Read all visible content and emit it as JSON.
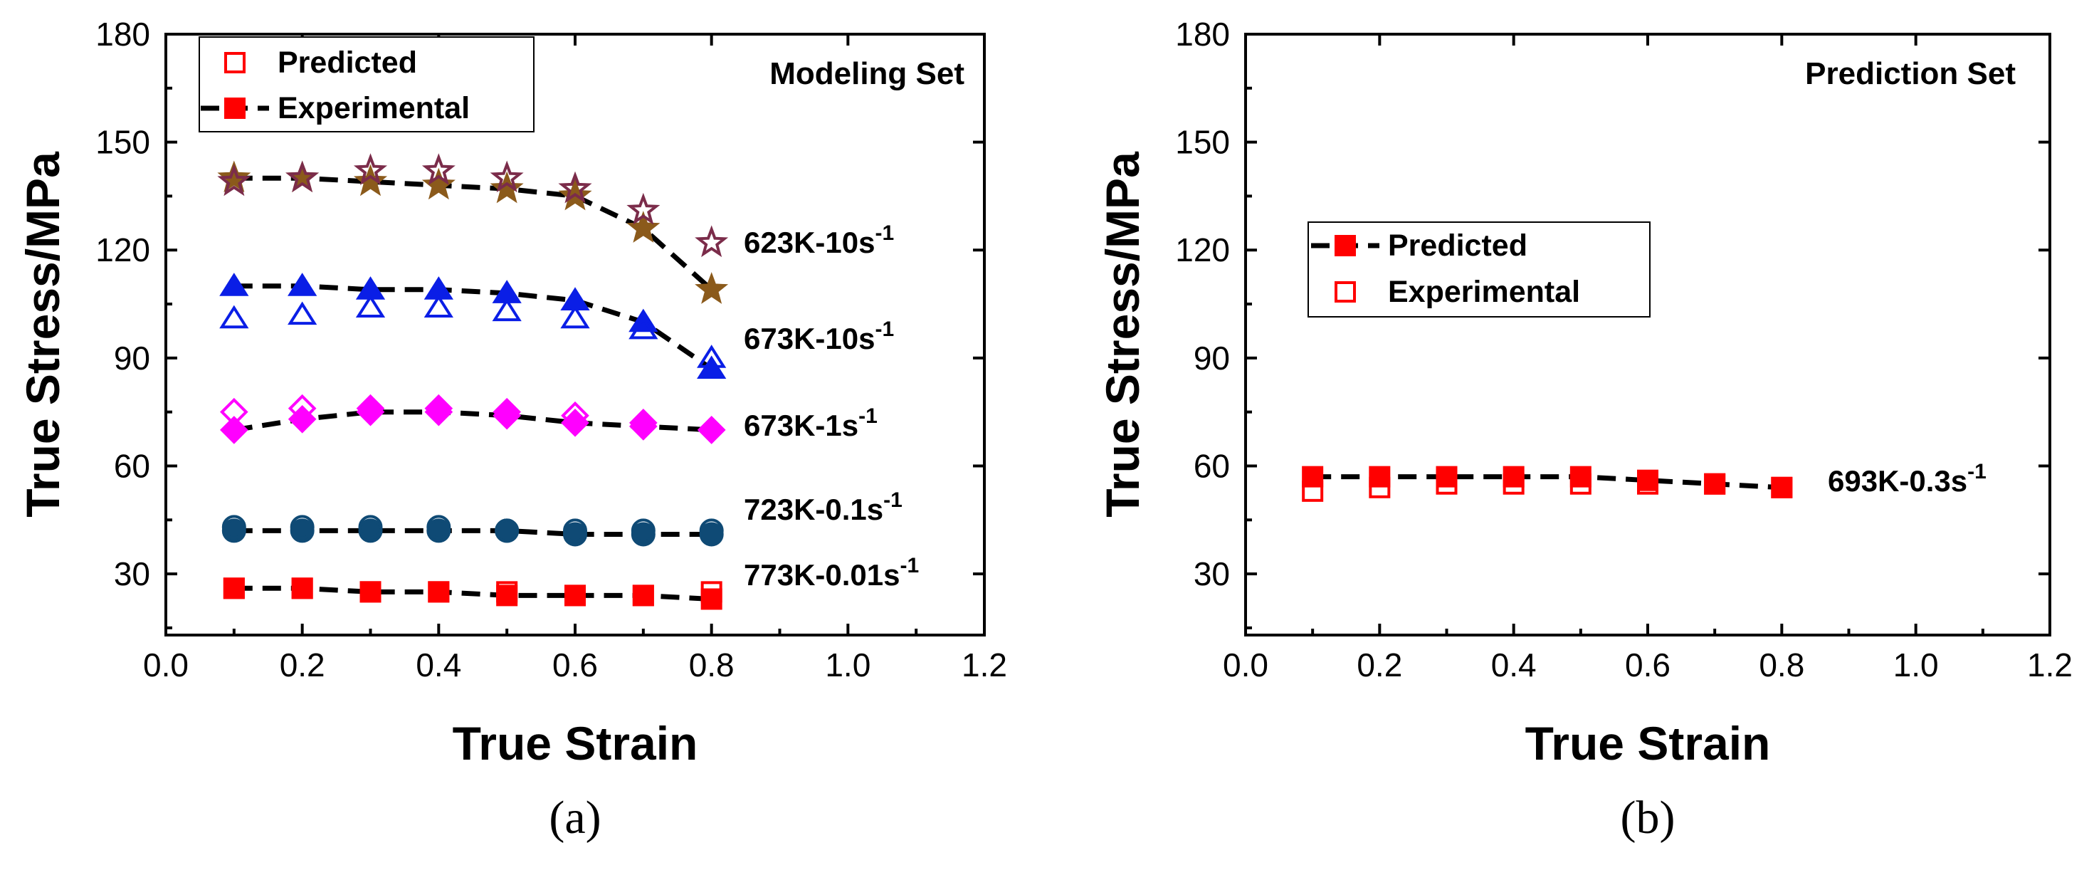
{
  "chart_data": [
    {
      "type": "scatter",
      "panel_label": "(a)",
      "title": "Modeling Set",
      "xlabel": "True Strain",
      "ylabel": "True Stress/MPa",
      "xlim": [
        0.0,
        1.2
      ],
      "ylim": [
        13,
        180
      ],
      "xticks": [
        "0.0",
        "0.2",
        "0.4",
        "0.6",
        "0.8",
        "1.0",
        "1.2"
      ],
      "yticks": [
        "30",
        "60",
        "90",
        "120",
        "150",
        "180"
      ],
      "legend": {
        "position": "top-left",
        "predicted": "Predicted",
        "experimental": "Experimental"
      },
      "series": [
        {
          "name": "623K-10s",
          "label_base": "623K-10s",
          "label_exp": "-1",
          "color": "#7b2c4a",
          "exp_color": "#8b5a1b",
          "marker": "star",
          "x": [
            0.1,
            0.2,
            0.3,
            0.4,
            0.5,
            0.6,
            0.7,
            0.8
          ],
          "predicted": [
            139,
            140,
            142,
            142,
            140,
            137,
            131,
            122
          ],
          "experimental": [
            140,
            140,
            139,
            138,
            137,
            135,
            126,
            109
          ]
        },
        {
          "name": "673K-10s",
          "label_base": "673K-10s",
          "label_exp": "-1",
          "color": "#0a1ee6",
          "marker": "triangle",
          "x": [
            0.1,
            0.2,
            0.3,
            0.4,
            0.5,
            0.6,
            0.7,
            0.8
          ],
          "predicted": [
            101,
            102,
            104,
            104,
            103,
            101,
            98,
            90
          ],
          "experimental": [
            110,
            110,
            109,
            109,
            108,
            106,
            100,
            87
          ]
        },
        {
          "name": "673K-1s",
          "label_base": "673K-1s",
          "label_exp": "-1",
          "color": "#ff00ff",
          "marker": "diamond",
          "x": [
            0.1,
            0.2,
            0.3,
            0.4,
            0.5,
            0.6,
            0.7,
            0.8
          ],
          "predicted": [
            75,
            76,
            76,
            76,
            75,
            74,
            72,
            70
          ],
          "experimental": [
            70,
            73,
            75,
            75,
            74,
            72,
            71,
            70
          ]
        },
        {
          "name": "723K-0.1s",
          "label_base": "723K-0.1s",
          "label_exp": "-1",
          "color": "#0f4a75",
          "marker": "circle",
          "x": [
            0.1,
            0.2,
            0.3,
            0.4,
            0.5,
            0.6,
            0.7,
            0.8
          ],
          "predicted": [
            43,
            43,
            43,
            43,
            42,
            42,
            42,
            42
          ],
          "experimental": [
            42,
            42,
            42,
            42,
            42,
            41,
            41,
            41
          ]
        },
        {
          "name": "773K-0.01s",
          "label_base": "773K-0.01s",
          "label_exp": "-1",
          "color": "#ff0000",
          "marker": "square",
          "x": [
            0.1,
            0.2,
            0.3,
            0.4,
            0.5,
            0.6,
            0.7,
            0.8
          ],
          "predicted": [
            26,
            26,
            25,
            25,
            25,
            24,
            24,
            25
          ],
          "experimental": [
            26,
            26,
            25,
            25,
            24,
            24,
            24,
            23
          ]
        }
      ]
    },
    {
      "type": "scatter",
      "panel_label": "(b)",
      "title": "Prediction Set",
      "xlabel": "True Strain",
      "ylabel": "True Stress/MPa",
      "xlim": [
        0.0,
        1.2
      ],
      "ylim": [
        13,
        180
      ],
      "xticks": [
        "0.0",
        "0.2",
        "0.4",
        "0.6",
        "0.8",
        "1.0",
        "1.2"
      ],
      "yticks": [
        "30",
        "60",
        "90",
        "120",
        "150",
        "180"
      ],
      "legend": {
        "position": "center-left",
        "predicted": "Predicted",
        "experimental": "Experimental"
      },
      "series": [
        {
          "name": "693K-0.3s",
          "label_base": "693K-0.3s",
          "label_exp": "-1",
          "color": "#ff0000",
          "marker": "square",
          "x": [
            0.1,
            0.2,
            0.3,
            0.4,
            0.5,
            0.6,
            0.7,
            0.8
          ],
          "predicted": [
            53,
            54,
            55,
            55,
            55,
            55,
            55,
            54
          ],
          "experimental": [
            57,
            57,
            57,
            57,
            57,
            56,
            55,
            54
          ]
        }
      ]
    }
  ]
}
